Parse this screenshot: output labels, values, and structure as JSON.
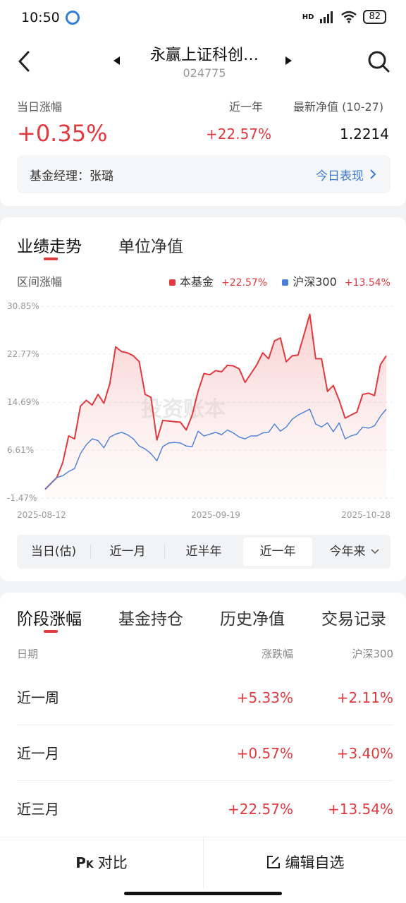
{
  "status_bar": {
    "time": "10:50",
    "network": "HD",
    "battery": "82"
  },
  "header": {
    "title": "永赢上证科创…",
    "code": "024775"
  },
  "summary": {
    "daily_change_label": "当日涨幅",
    "daily_change_value": "+0.35%",
    "one_year_label": "近一年",
    "one_year_value": "+22.57%",
    "nav_label": "最新净值 (10-27)",
    "nav_value": "1.2214",
    "manager_label": "基金经理：张璐",
    "today_link": "今日表现"
  },
  "chart_tabs": {
    "performance": "业绩走势",
    "unit_nav": "单位净值"
  },
  "chart_header": {
    "range_label": "区间涨幅",
    "legend_fund": "本基金",
    "legend_fund_value": "+22.57%",
    "legend_index": "沪深300",
    "legend_index_value": "+13.54%"
  },
  "watermark": "投资账本",
  "chart_data": {
    "type": "area",
    "y_ticks": [
      "30.85%",
      "22.77%",
      "14.69%",
      "6.61%",
      "-1.47%"
    ],
    "ylim": [
      -1.47,
      30.85
    ],
    "x_ticks": [
      "2025-08-12",
      "2025-09-19",
      "2025-10-28"
    ],
    "series": [
      {
        "name": "本基金",
        "color": "#e0393e",
        "values": [
          0.0,
          1.0,
          2.0,
          4.5,
          9.0,
          8.5,
          14.0,
          15.0,
          14.2,
          16.0,
          14.5,
          17.8,
          24.0,
          23.2,
          23.0,
          22.5,
          21.5,
          16.0,
          15.5,
          8.3,
          11.6,
          11.5,
          11.4,
          11.3,
          10.0,
          12.5,
          16.5,
          19.5,
          19.3,
          20.0,
          19.8,
          20.9,
          20.8,
          20.3,
          18.0,
          19.5,
          21.0,
          23.0,
          22.0,
          25.0,
          25.5,
          21.5,
          22.5,
          22.6,
          26.0,
          29.5,
          22.0,
          22.0,
          16.5,
          17.5,
          15.0,
          12.0,
          12.5,
          13.0,
          16.0,
          16.2,
          15.8,
          21.0,
          22.5
        ]
      },
      {
        "name": "沪深300",
        "color": "#4a7ed8",
        "values": [
          0.0,
          1.0,
          2.0,
          2.3,
          3.0,
          3.5,
          6.0,
          7.5,
          8.5,
          8.2,
          7.0,
          8.8,
          9.3,
          9.6,
          9.2,
          8.5,
          7.3,
          6.8,
          6.0,
          4.8,
          7.2,
          7.8,
          7.9,
          7.8,
          7.3,
          7.2,
          9.8,
          9.0,
          9.3,
          9.6,
          9.2,
          10.0,
          9.5,
          8.8,
          8.5,
          9.0,
          9.0,
          9.5,
          9.6,
          11.0,
          9.8,
          10.5,
          11.8,
          12.5,
          13.0,
          13.5,
          11.0,
          10.5,
          11.2,
          9.7,
          11.2,
          8.5,
          9.0,
          9.3,
          10.5,
          10.3,
          10.7,
          12.3,
          13.5
        ]
      }
    ]
  },
  "range_buttons": [
    "当日(估)",
    "近一月",
    "近半年",
    "近一年",
    "今年来"
  ],
  "stage_tabs": [
    "阶段涨幅",
    "基金持仓",
    "历史净值",
    "交易记录"
  ],
  "stage_table": {
    "headers": [
      "日期",
      "涨跌幅",
      "沪深300"
    ],
    "rows": [
      {
        "period": "近一周",
        "fund": "+5.33%",
        "index": "+2.11%"
      },
      {
        "period": "近一月",
        "fund": "+0.57%",
        "index": "+3.40%"
      },
      {
        "period": "近三月",
        "fund": "+22.57%",
        "index": "+13.54%"
      }
    ]
  },
  "bottom_bar": {
    "compare": "对比",
    "edit_watchlist": "编辑自选"
  }
}
